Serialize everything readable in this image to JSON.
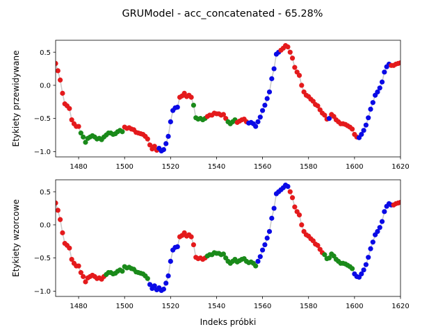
{
  "figure": {
    "suptitle": "GRUModel - acc_concatenated - 65.28%"
  },
  "chart_data": [
    {
      "type": "scatter",
      "title": "",
      "xlabel": "",
      "ylabel": "Etykiety przewidywane",
      "xlim": [
        1470,
        1620
      ],
      "ylim": [
        -1.08,
        0.68
      ],
      "xticks": [
        1480,
        1500,
        1520,
        1540,
        1560,
        1580,
        1600,
        1620
      ],
      "yticks": [
        0.5,
        0.0,
        -0.5,
        -1.0
      ],
      "tick_labels_x": [
        "1480",
        "1500",
        "1520",
        "1540",
        "1560",
        "1580",
        "1600",
        "1620"
      ],
      "tick_labels_y": [
        "0.5",
        "0.0",
        "−0.5",
        "−1.0"
      ],
      "grid": false,
      "line_color": "#c8c8c8",
      "class_colors": {
        "red": "#e41a1c",
        "green": "#1a8a1a",
        "blue": "#0a0ae6"
      },
      "x": [
        1470,
        1471,
        1472,
        1473,
        1474,
        1475,
        1476,
        1477,
        1478,
        1479,
        1480,
        1481,
        1482,
        1483,
        1484,
        1485,
        1486,
        1487,
        1488,
        1489,
        1490,
        1491,
        1492,
        1493,
        1494,
        1495,
        1496,
        1497,
        1498,
        1499,
        1500,
        1501,
        1502,
        1503,
        1504,
        1505,
        1506,
        1507,
        1508,
        1509,
        1510,
        1511,
        1512,
        1513,
        1514,
        1515,
        1516,
        1517,
        1518,
        1519,
        1520,
        1521,
        1522,
        1523,
        1524,
        1525,
        1526,
        1527,
        1528,
        1529,
        1530,
        1531,
        1532,
        1533,
        1534,
        1535,
        1536,
        1537,
        1538,
        1539,
        1540,
        1541,
        1542,
        1543,
        1544,
        1545,
        1546,
        1547,
        1548,
        1549,
        1550,
        1551,
        1552,
        1553,
        1554,
        1555,
        1556,
        1557,
        1558,
        1559,
        1560,
        1561,
        1562,
        1563,
        1564,
        1565,
        1566,
        1567,
        1568,
        1569,
        1570,
        1571,
        1572,
        1573,
        1574,
        1575,
        1576,
        1577,
        1578,
        1579,
        1580,
        1581,
        1582,
        1583,
        1584,
        1585,
        1586,
        1587,
        1588,
        1589,
        1590,
        1591,
        1592,
        1593,
        1594,
        1595,
        1596,
        1597,
        1598,
        1599,
        1600,
        1601,
        1602,
        1603,
        1604,
        1605,
        1606,
        1607,
        1608,
        1609,
        1610,
        1611,
        1612,
        1613,
        1614,
        1615,
        1616,
        1617,
        1618,
        1619,
        1620
      ],
      "y": [
        0.33,
        0.22,
        0.08,
        -0.12,
        -0.28,
        -0.31,
        -0.35,
        -0.52,
        -0.58,
        -0.62,
        -0.62,
        -0.72,
        -0.78,
        -0.86,
        -0.8,
        -0.78,
        -0.76,
        -0.78,
        -0.81,
        -0.8,
        -0.82,
        -0.78,
        -0.75,
        -0.72,
        -0.72,
        -0.74,
        -0.73,
        -0.7,
        -0.68,
        -0.7,
        -0.63,
        -0.65,
        -0.64,
        -0.66,
        -0.67,
        -0.71,
        -0.72,
        -0.73,
        -0.74,
        -0.77,
        -0.81,
        -0.9,
        -0.96,
        -0.92,
        -0.98,
        -0.95,
        -0.99,
        -0.97,
        -0.88,
        -0.77,
        -0.55,
        -0.38,
        -0.34,
        -0.33,
        -0.18,
        -0.16,
        -0.12,
        -0.17,
        -0.15,
        -0.18,
        -0.3,
        -0.49,
        -0.51,
        -0.5,
        -0.52,
        -0.5,
        -0.47,
        -0.45,
        -0.45,
        -0.42,
        -0.43,
        -0.43,
        -0.45,
        -0.44,
        -0.5,
        -0.55,
        -0.58,
        -0.55,
        -0.52,
        -0.56,
        -0.54,
        -0.52,
        -0.51,
        -0.55,
        -0.57,
        -0.56,
        -0.58,
        -0.62,
        -0.55,
        -0.48,
        -0.38,
        -0.3,
        -0.2,
        -0.1,
        0.1,
        0.25,
        0.47,
        0.5,
        0.53,
        0.56,
        0.6,
        0.58,
        0.5,
        0.41,
        0.27,
        0.2,
        0.15,
        0.0,
        -0.1,
        -0.15,
        -0.17,
        -0.21,
        -0.24,
        -0.29,
        -0.31,
        -0.37,
        -0.42,
        -0.45,
        -0.51,
        -0.5,
        -0.44,
        -0.47,
        -0.52,
        -0.55,
        -0.58,
        -0.58,
        -0.59,
        -0.61,
        -0.63,
        -0.66,
        -0.74,
        -0.78,
        -0.79,
        -0.74,
        -0.68,
        -0.6,
        -0.49,
        -0.36,
        -0.26,
        -0.15,
        -0.1,
        -0.04,
        0.05,
        0.2,
        0.28,
        0.32,
        0.3,
        0.3,
        0.32,
        0.33,
        0.34
      ],
      "colors": [
        "red",
        "red",
        "red",
        "red",
        "red",
        "red",
        "red",
        "red",
        "red",
        "red",
        "red",
        "green",
        "green",
        "green",
        "green",
        "green",
        "green",
        "green",
        "green",
        "green",
        "green",
        "green",
        "green",
        "green",
        "green",
        "green",
        "green",
        "green",
        "green",
        "green",
        "red",
        "red",
        "red",
        "red",
        "red",
        "red",
        "red",
        "red",
        "red",
        "red",
        "red",
        "red",
        "red",
        "red",
        "red",
        "blue",
        "blue",
        "blue",
        "blue",
        "blue",
        "blue",
        "blue",
        "blue",
        "blue",
        "red",
        "red",
        "red",
        "red",
        "red",
        "red",
        "green",
        "green",
        "green",
        "green",
        "green",
        "green",
        "red",
        "red",
        "red",
        "red",
        "red",
        "red",
        "red",
        "red",
        "red",
        "green",
        "green",
        "green",
        "green",
        "red",
        "red",
        "red",
        "red",
        "red",
        "blue",
        "blue",
        "blue",
        "blue",
        "blue",
        "blue",
        "blue",
        "blue",
        "blue",
        "blue",
        "blue",
        "blue",
        "blue",
        "blue",
        "red",
        "red",
        "red",
        "red",
        "red",
        "red",
        "red",
        "red",
        "red",
        "red",
        "red",
        "red",
        "red",
        "red",
        "red",
        "red",
        "red",
        "red",
        "red",
        "red",
        "red",
        "blue",
        "red",
        "red",
        "red",
        "red",
        "red",
        "red",
        "red",
        "red",
        "red",
        "red",
        "red",
        "red",
        "blue",
        "blue",
        "blue",
        "blue",
        "blue",
        "blue",
        "blue",
        "blue",
        "blue",
        "blue",
        "blue",
        "blue",
        "blue",
        "blue",
        "red",
        "red",
        "red",
        "red",
        "red"
      ]
    },
    {
      "type": "scatter",
      "title": "",
      "xlabel": "Indeks próbki",
      "ylabel": "Etykiety wzorcowe",
      "xlim": [
        1470,
        1620
      ],
      "ylim": [
        -1.08,
        0.68
      ],
      "xticks": [
        1480,
        1500,
        1520,
        1540,
        1560,
        1580,
        1600,
        1620
      ],
      "yticks": [
        0.5,
        0.0,
        -0.5,
        -1.0
      ],
      "tick_labels_x": [
        "1480",
        "1500",
        "1520",
        "1540",
        "1560",
        "1580",
        "1600",
        "1620"
      ],
      "tick_labels_y": [
        "0.5",
        "0.0",
        "−0.5",
        "−1.0"
      ],
      "grid": false,
      "line_color": "#c8c8c8",
      "class_colors": {
        "red": "#e41a1c",
        "green": "#1a8a1a",
        "blue": "#0a0ae6"
      },
      "x": [
        1470,
        1471,
        1472,
        1473,
        1474,
        1475,
        1476,
        1477,
        1478,
        1479,
        1480,
        1481,
        1482,
        1483,
        1484,
        1485,
        1486,
        1487,
        1488,
        1489,
        1490,
        1491,
        1492,
        1493,
        1494,
        1495,
        1496,
        1497,
        1498,
        1499,
        1500,
        1501,
        1502,
        1503,
        1504,
        1505,
        1506,
        1507,
        1508,
        1509,
        1510,
        1511,
        1512,
        1513,
        1514,
        1515,
        1516,
        1517,
        1518,
        1519,
        1520,
        1521,
        1522,
        1523,
        1524,
        1525,
        1526,
        1527,
        1528,
        1529,
        1530,
        1531,
        1532,
        1533,
        1534,
        1535,
        1536,
        1537,
        1538,
        1539,
        1540,
        1541,
        1542,
        1543,
        1544,
        1545,
        1546,
        1547,
        1548,
        1549,
        1550,
        1551,
        1552,
        1553,
        1554,
        1555,
        1556,
        1557,
        1558,
        1559,
        1560,
        1561,
        1562,
        1563,
        1564,
        1565,
        1566,
        1567,
        1568,
        1569,
        1570,
        1571,
        1572,
        1573,
        1574,
        1575,
        1576,
        1577,
        1578,
        1579,
        1580,
        1581,
        1582,
        1583,
        1584,
        1585,
        1586,
        1587,
        1588,
        1589,
        1590,
        1591,
        1592,
        1593,
        1594,
        1595,
        1596,
        1597,
        1598,
        1599,
        1600,
        1601,
        1602,
        1603,
        1604,
        1605,
        1606,
        1607,
        1608,
        1609,
        1610,
        1611,
        1612,
        1613,
        1614,
        1615,
        1616,
        1617,
        1618,
        1619,
        1620
      ],
      "y": [
        0.33,
        0.22,
        0.08,
        -0.12,
        -0.28,
        -0.31,
        -0.35,
        -0.52,
        -0.58,
        -0.62,
        -0.62,
        -0.72,
        -0.78,
        -0.86,
        -0.8,
        -0.78,
        -0.76,
        -0.78,
        -0.81,
        -0.8,
        -0.82,
        -0.78,
        -0.75,
        -0.72,
        -0.72,
        -0.74,
        -0.73,
        -0.7,
        -0.68,
        -0.7,
        -0.63,
        -0.65,
        -0.64,
        -0.66,
        -0.67,
        -0.71,
        -0.72,
        -0.73,
        -0.74,
        -0.77,
        -0.81,
        -0.9,
        -0.96,
        -0.92,
        -0.98,
        -0.95,
        -0.99,
        -0.97,
        -0.88,
        -0.77,
        -0.55,
        -0.38,
        -0.34,
        -0.33,
        -0.18,
        -0.16,
        -0.12,
        -0.17,
        -0.15,
        -0.18,
        -0.3,
        -0.49,
        -0.51,
        -0.5,
        -0.52,
        -0.5,
        -0.47,
        -0.45,
        -0.45,
        -0.42,
        -0.43,
        -0.43,
        -0.45,
        -0.44,
        -0.5,
        -0.55,
        -0.58,
        -0.55,
        -0.52,
        -0.56,
        -0.54,
        -0.52,
        -0.51,
        -0.55,
        -0.57,
        -0.56,
        -0.58,
        -0.62,
        -0.55,
        -0.48,
        -0.38,
        -0.3,
        -0.2,
        -0.1,
        0.1,
        0.25,
        0.47,
        0.5,
        0.53,
        0.56,
        0.6,
        0.58,
        0.5,
        0.41,
        0.27,
        0.2,
        0.15,
        0.0,
        -0.1,
        -0.15,
        -0.17,
        -0.21,
        -0.24,
        -0.29,
        -0.31,
        -0.37,
        -0.42,
        -0.45,
        -0.51,
        -0.5,
        -0.44,
        -0.47,
        -0.52,
        -0.55,
        -0.58,
        -0.58,
        -0.59,
        -0.61,
        -0.63,
        -0.66,
        -0.74,
        -0.78,
        -0.79,
        -0.74,
        -0.68,
        -0.6,
        -0.49,
        -0.36,
        -0.26,
        -0.15,
        -0.1,
        -0.04,
        0.05,
        0.2,
        0.28,
        0.32,
        0.3,
        0.3,
        0.32,
        0.33,
        0.34
      ],
      "colors": [
        "red",
        "red",
        "red",
        "red",
        "red",
        "red",
        "red",
        "red",
        "red",
        "red",
        "red",
        "red",
        "red",
        "red",
        "red",
        "red",
        "red",
        "red",
        "red",
        "red",
        "red",
        "red",
        "green",
        "green",
        "green",
        "green",
        "green",
        "green",
        "green",
        "green",
        "green",
        "green",
        "green",
        "green",
        "green",
        "green",
        "green",
        "green",
        "green",
        "green",
        "green",
        "blue",
        "blue",
        "blue",
        "blue",
        "blue",
        "blue",
        "blue",
        "blue",
        "blue",
        "blue",
        "blue",
        "blue",
        "blue",
        "red",
        "red",
        "red",
        "red",
        "red",
        "red",
        "red",
        "red",
        "red",
        "red",
        "red",
        "red",
        "green",
        "green",
        "green",
        "green",
        "green",
        "green",
        "green",
        "green",
        "green",
        "green",
        "green",
        "green",
        "green",
        "green",
        "green",
        "green",
        "green",
        "green",
        "green",
        "green",
        "green",
        "green",
        "blue",
        "blue",
        "blue",
        "blue",
        "blue",
        "blue",
        "blue",
        "blue",
        "blue",
        "blue",
        "blue",
        "blue",
        "blue",
        "blue",
        "red",
        "red",
        "red",
        "red",
        "red",
        "red",
        "red",
        "red",
        "red",
        "red",
        "red",
        "red",
        "red",
        "red",
        "red",
        "green",
        "green",
        "green",
        "green",
        "green",
        "green",
        "green",
        "green",
        "green",
        "green",
        "green",
        "green",
        "green",
        "blue",
        "blue",
        "blue",
        "blue",
        "blue",
        "blue",
        "blue",
        "blue",
        "blue",
        "blue",
        "blue",
        "blue",
        "blue",
        "blue",
        "blue",
        "blue",
        "blue",
        "red",
        "red",
        "red",
        "red",
        "red"
      ]
    }
  ]
}
